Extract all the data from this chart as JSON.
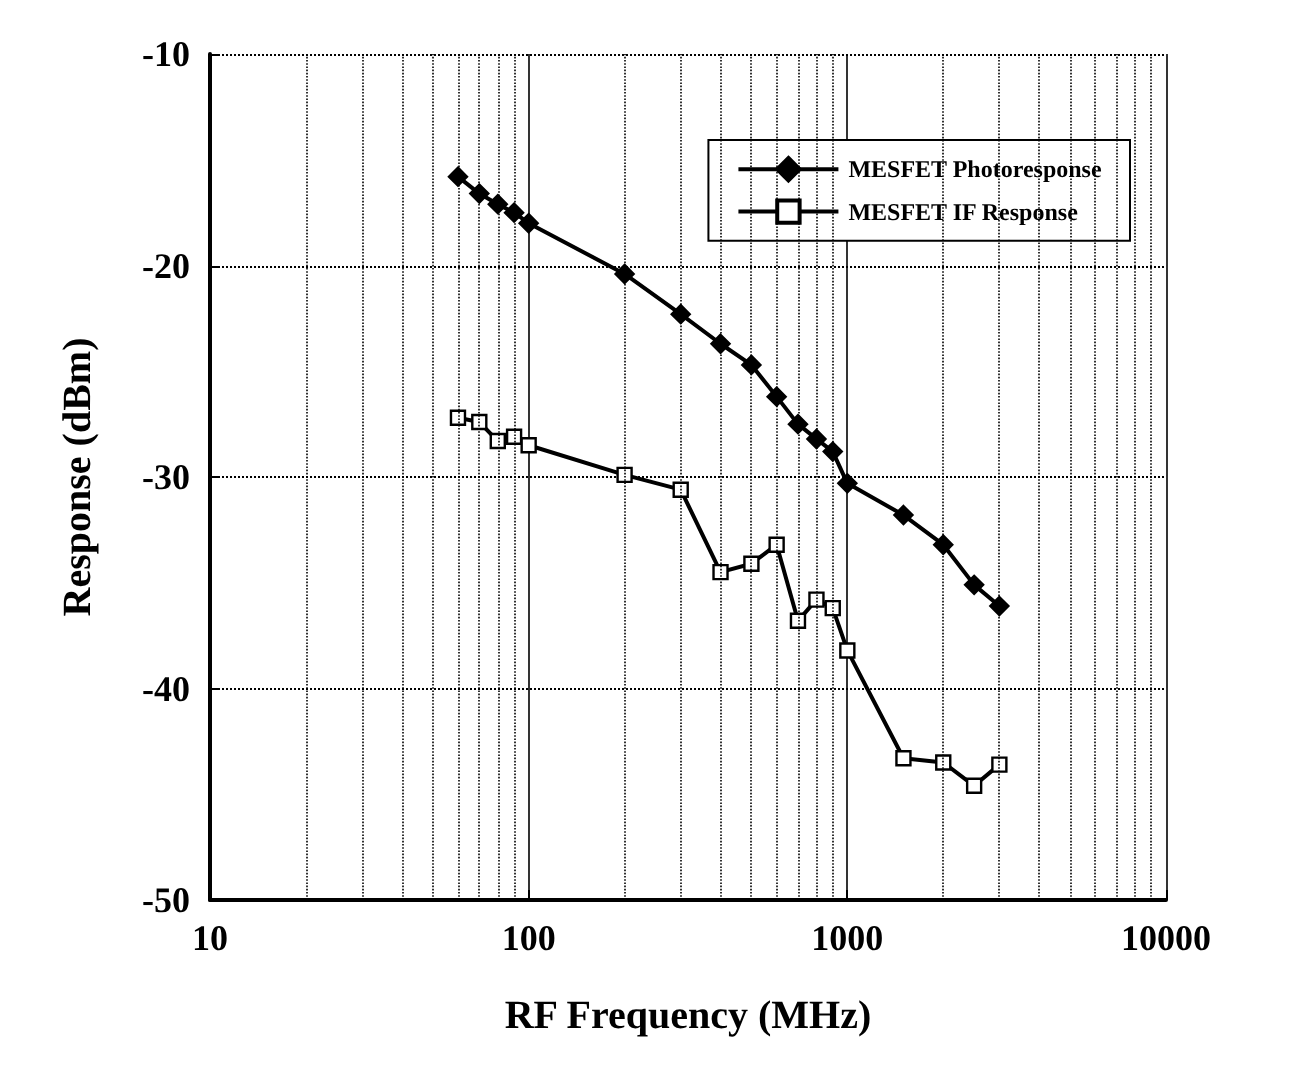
{
  "chart_data": {
    "type": "line",
    "xlabel": "RF Frequency (MHz)",
    "ylabel": "Response (dBm)",
    "log": "x",
    "xlim": [
      10,
      10000
    ],
    "xticks": [
      10,
      100,
      1000,
      10000
    ],
    "ylim": [
      -50,
      -10
    ],
    "yticks": [
      -50,
      -40,
      -30,
      -20,
      -10
    ],
    "grid": true,
    "legend": "top right",
    "line_style": "solid",
    "x": [
      60,
      70,
      80,
      90,
      100,
      200,
      300,
      400,
      500,
      600,
      700,
      800,
      900,
      1000,
      1500,
      2000,
      2500,
      3000
    ],
    "series": [
      {
        "name": "MESFET Photoresponse",
        "color": "#000000",
        "marker": "diamond",
        "values": [
          -15.8,
          -16.6,
          -17.1,
          -17.5,
          -18.0,
          -20.4,
          -22.3,
          -23.7,
          -24.7,
          -26.2,
          -27.5,
          -28.2,
          -28.8,
          -30.3,
          -31.8,
          -33.2,
          -35.1,
          -36.1
        ]
      },
      {
        "name": "MESFET IF Response",
        "color": "#000000",
        "marker": "square",
        "values": [
          -27.2,
          -27.4,
          -28.3,
          -28.1,
          -28.5,
          -29.9,
          -30.6,
          -34.5,
          -34.1,
          -33.2,
          -36.8,
          -35.8,
          -36.2,
          -38.2,
          -43.3,
          -43.5,
          -44.6,
          -43.6
        ]
      }
    ]
  }
}
